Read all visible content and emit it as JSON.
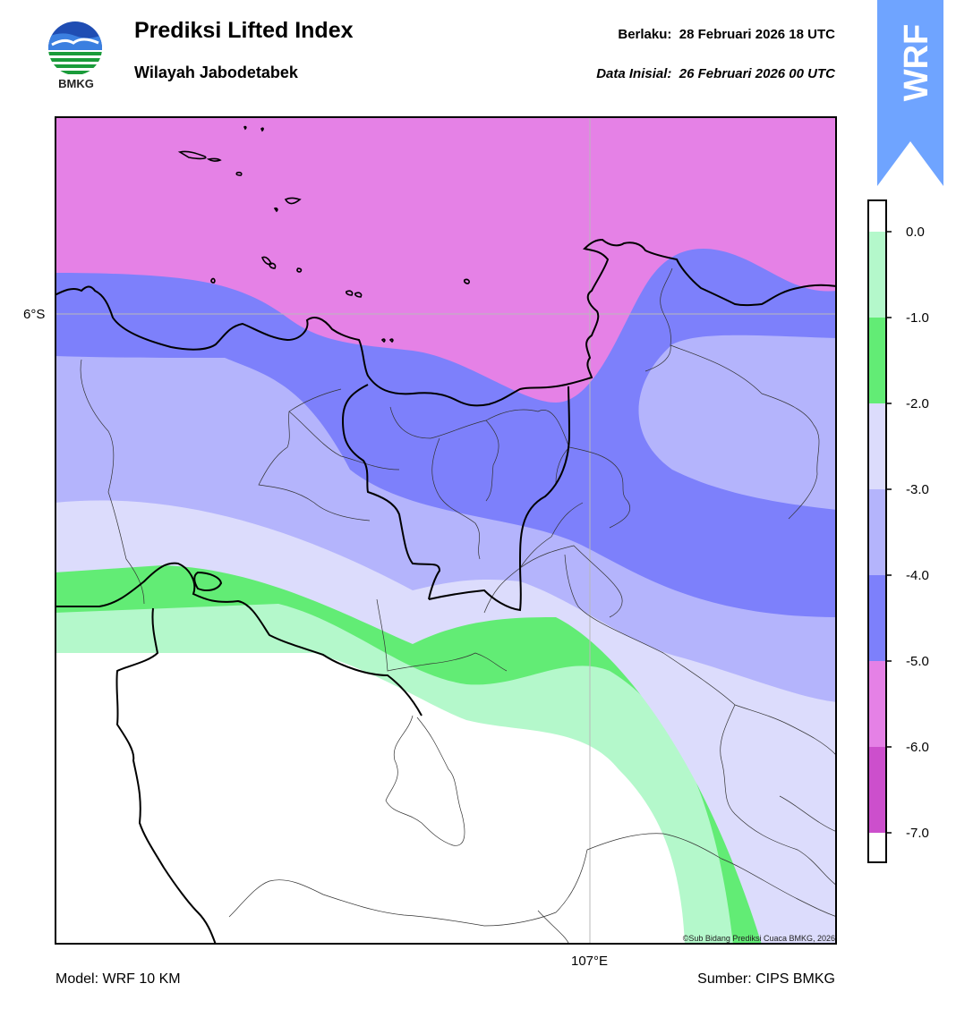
{
  "header": {
    "title": "Prediksi Lifted Index",
    "subtitle": "Wilayah Jabodetabek",
    "valid_label": "Berlaku:",
    "valid_time": "28 Februari 2026 18 UTC",
    "init_label": "Data Inisial:",
    "init_time": "26 Februari 2026 00 UTC"
  },
  "logo": {
    "icon": "bmkg-logo-icon",
    "text": "BMKG"
  },
  "badge": {
    "text": "WRF",
    "color": "#6fa4ff"
  },
  "axes": {
    "lat_label": "6°S",
    "lon_label": "107°E"
  },
  "legend": {
    "labels": [
      "0.0",
      "-1.0",
      "-2.0",
      "-3.0",
      "-4.0",
      "-5.0",
      "-6.0",
      "-7.0"
    ],
    "colors": [
      "#b4f8cb",
      "#62ec75",
      "#dcdcfc",
      "#b4b4fc",
      "#7d80fb",
      "#e581e6",
      "#cc4fcc",
      "#8f2b8f"
    ]
  },
  "map_colors": {
    "band_0_to_m1": "#b4f8cb",
    "band_m1_to_m2": "#62ec75",
    "band_m2_to_m3": "#dcdcfc",
    "band_m3_to_m4": "#b4b4fc",
    "band_m4_to_m5": "#7d80fb",
    "band_m5_to_m6": "#e581e6"
  },
  "footer": {
    "model": "Model: WRF 10 KM",
    "source": "Sumber: CIPS BMKG",
    "credit": "©Sub Bidang Prediksi Cuaca BMKG, 2026"
  }
}
